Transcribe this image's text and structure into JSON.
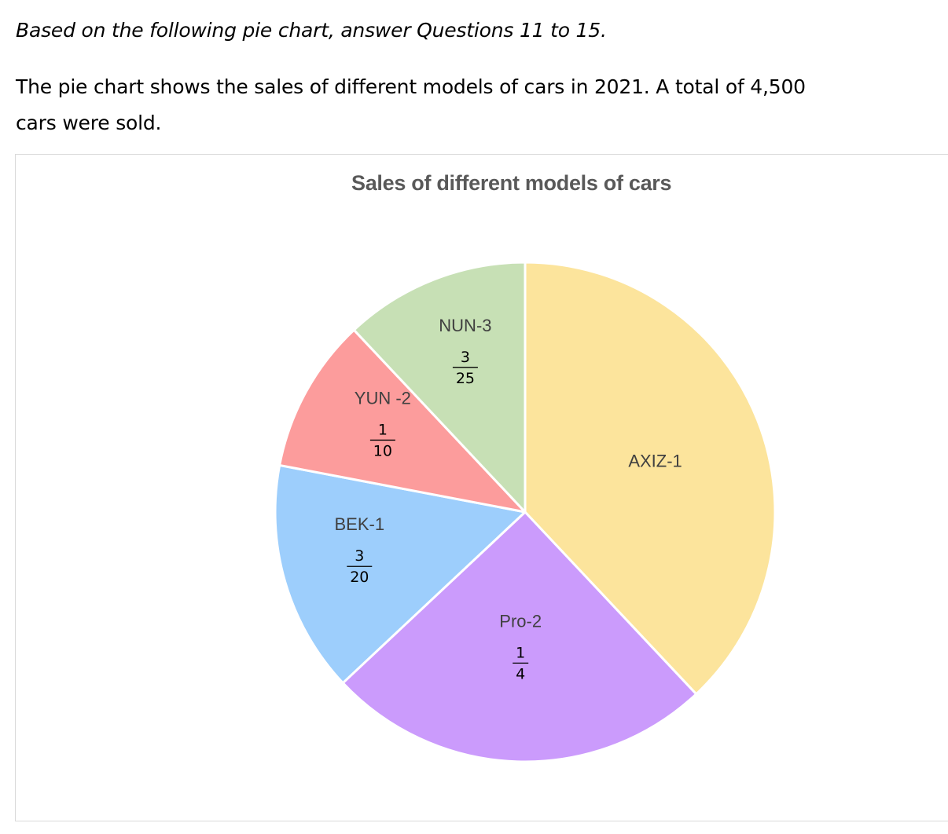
{
  "header": {
    "instruction": "Based on the following pie chart, answer Questions 11 to 15.",
    "intro_line1": "The pie chart shows the sales of different models of cars in 2021. A total of 4,500",
    "intro_line2": "cars were sold."
  },
  "chart_data": {
    "type": "pie",
    "title": "Sales of different models of cars",
    "start_angle_deg": 0,
    "direction": "clockwise",
    "slices": [
      {
        "label": "AXIZ-1",
        "value": 0.38,
        "fraction_label": null,
        "color": "#fce49c"
      },
      {
        "label": "Pro-2",
        "value": 0.25,
        "fraction_label": {
          "num": "1",
          "den": "4"
        },
        "color": "#cb9bfc"
      },
      {
        "label": "BEK-1",
        "value": 0.15,
        "fraction_label": {
          "num": "3",
          "den": "20"
        },
        "color": "#9dcefc"
      },
      {
        "label": "YUN -2",
        "value": 0.1,
        "fraction_label": {
          "num": "1",
          "den": "10"
        },
        "color": "#fc9c9c"
      },
      {
        "label": "NUN-3",
        "value": 0.12,
        "fraction_label": {
          "num": "3",
          "den": "25"
        },
        "color": "#c7e0b5"
      }
    ]
  }
}
